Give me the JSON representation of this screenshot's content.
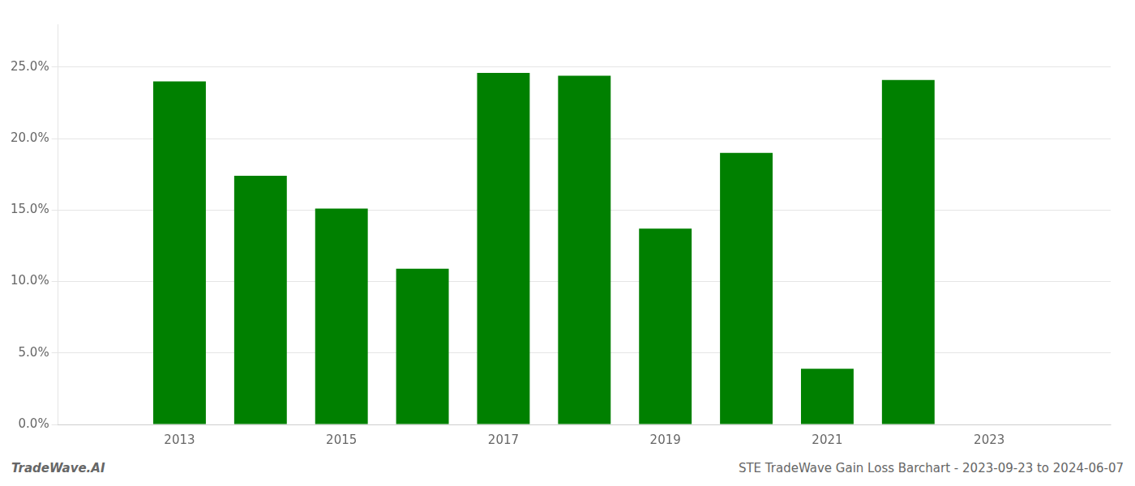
{
  "chart_data": {
    "type": "bar",
    "x": [
      2013,
      2014,
      2015,
      2016,
      2017,
      2018,
      2019,
      2020,
      2021,
      2022,
      2023
    ],
    "values": [
      0.24,
      0.174,
      0.151,
      0.109,
      0.246,
      0.244,
      0.137,
      0.19,
      0.039,
      0.241,
      null
    ],
    "color": "#008000",
    "xlim": [
      2011.5,
      2024.5
    ],
    "xticks": [
      2013,
      2015,
      2017,
      2019,
      2021,
      2023
    ],
    "ylim": [
      0,
      0.28
    ],
    "yticks": [
      {
        "value": 0.0,
        "label": "0.0%"
      },
      {
        "value": 0.05,
        "label": "5.0%"
      },
      {
        "value": 0.1,
        "label": "10.0%"
      },
      {
        "value": 0.15,
        "label": "15.0%"
      },
      {
        "value": 0.2,
        "label": "20.0%"
      },
      {
        "value": 0.25,
        "label": "25.0%"
      }
    ],
    "grid": true,
    "annotations": [
      "TradeWave.AI",
      "STE TradeWave Gain Loss Barchart - 2023-09-23 to 2024-06-07"
    ]
  }
}
